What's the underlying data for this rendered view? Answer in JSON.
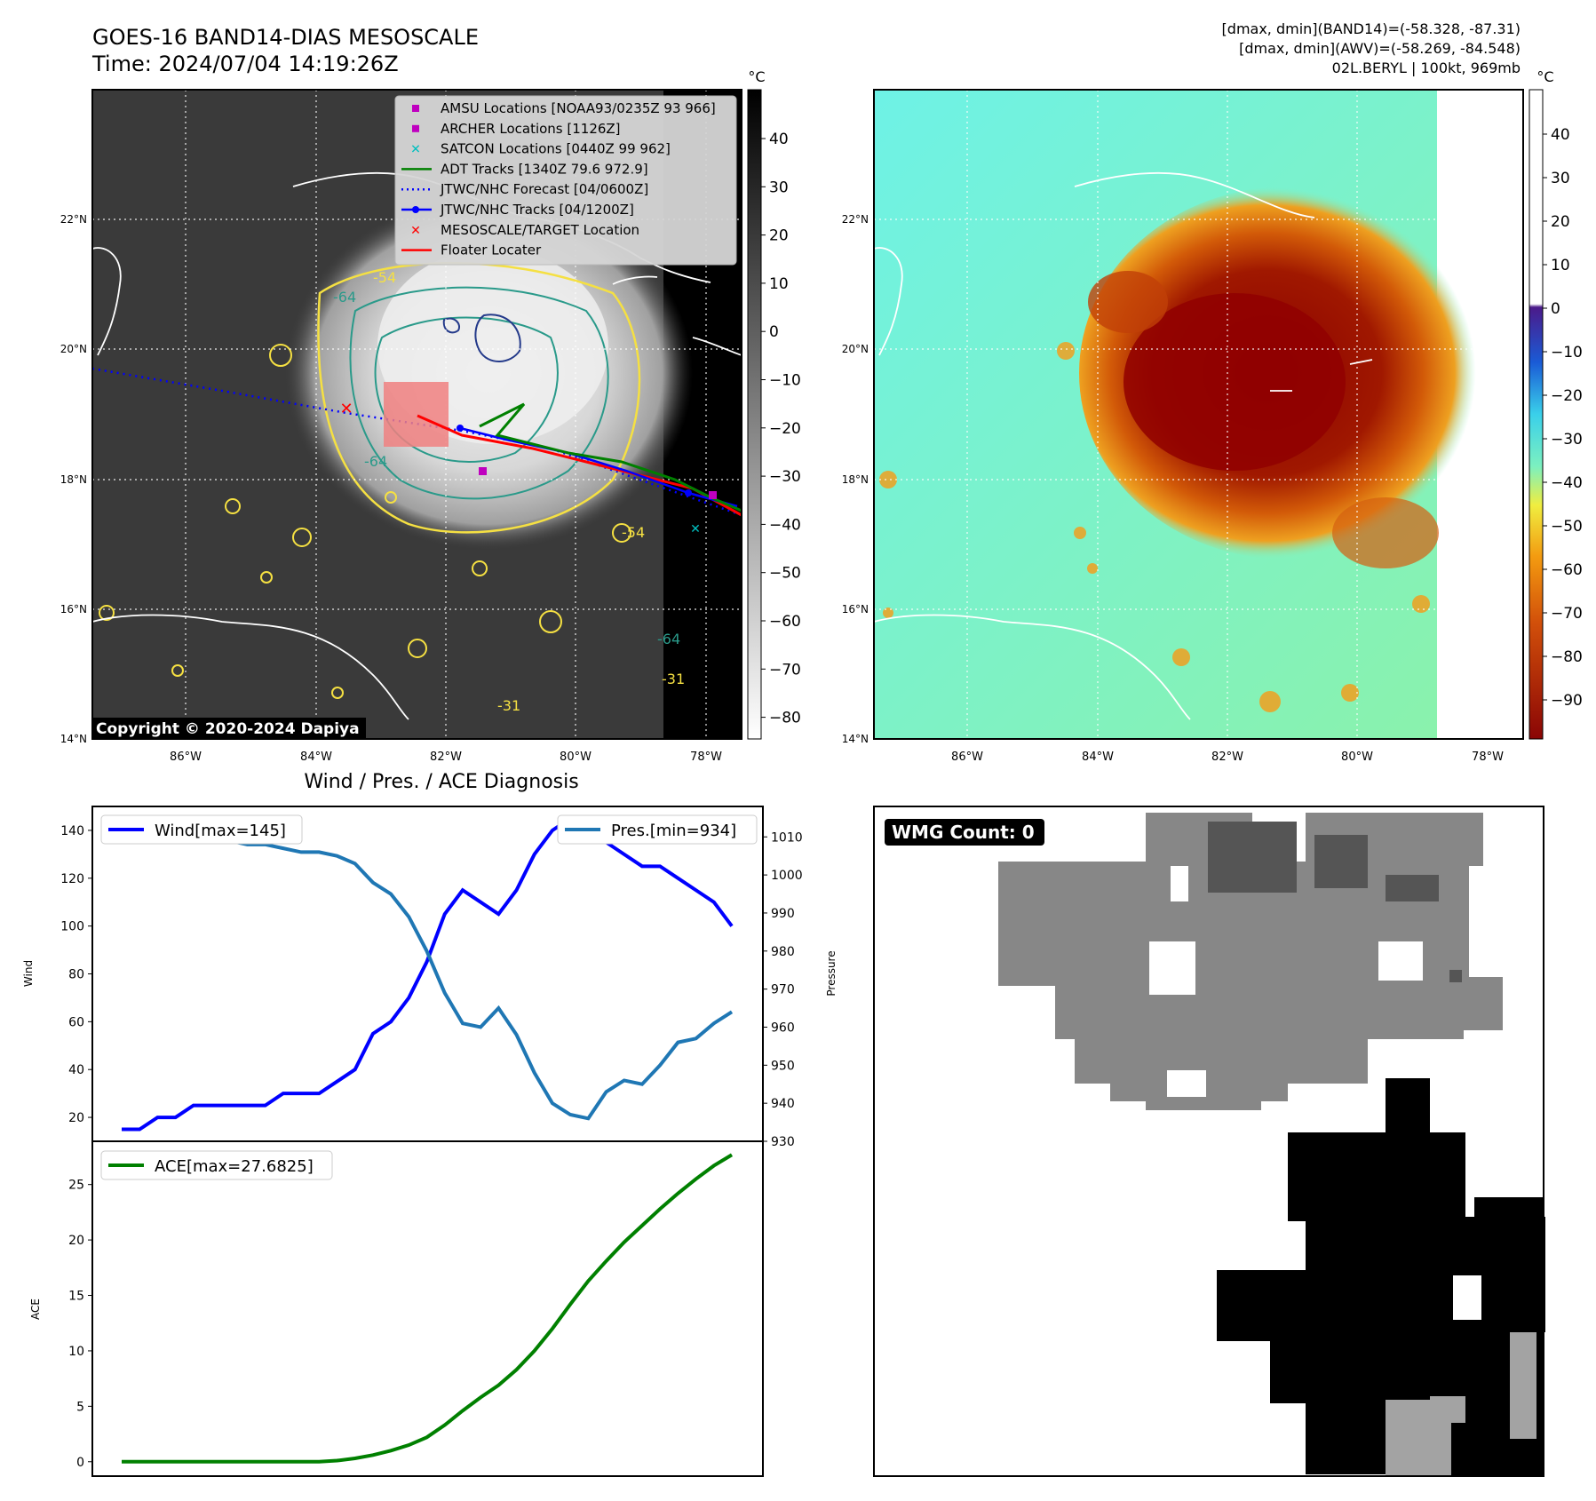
{
  "header": {
    "title_line1": "GOES-16 BAND14-DIAS MESOSCALE",
    "title_line2": "Time: 2024/07/04 14:19:26Z",
    "info_line1": "[dmax, dmin](BAND14)=(-58.328, -87.31)",
    "info_line2": "[dmax, dmin](AWV)=(-58.269, -84.548)",
    "info_line3": "02L.BERYL | 100kt, 969mb"
  },
  "map": {
    "lon_ticks": [
      "86°W",
      "84°W",
      "82°W",
      "80°W",
      "78°W"
    ],
    "lat_ticks": [
      "22°N",
      "20°N",
      "18°N",
      "16°N",
      "14°N"
    ],
    "copyright": "Copyright © 2020-2024 Dapiya",
    "contour_labels": [
      "-54",
      "-64",
      "-64",
      "-54",
      "-64",
      "-31",
      "-31"
    ],
    "legend": [
      {
        "label": "AMSU Locations [NOAA93/0235Z 93 966]",
        "symbol": "square",
        "color": "#bf00bf"
      },
      {
        "label": "ARCHER Locations [1126Z]",
        "symbol": "square",
        "color": "#bf00bf"
      },
      {
        "label": "SATCON Locations [0440Z 99 962]",
        "symbol": "x",
        "color": "#00bfbf"
      },
      {
        "label": "ADT Tracks [1340Z 79.6 972.9]",
        "symbol": "line",
        "color": "#008000"
      },
      {
        "label": "JTWC/NHC Forecast [04/0600Z]",
        "symbol": "dotted",
        "color": "#0000ff"
      },
      {
        "label": "JTWC/NHC Tracks [04/1200Z]",
        "symbol": "line-dot",
        "color": "#0000ff"
      },
      {
        "label": "MESOSCALE/TARGET Location",
        "symbol": "x",
        "color": "#ff0000"
      },
      {
        "label": "Floater Locater",
        "symbol": "line",
        "color": "#ff0000"
      }
    ]
  },
  "colorbars": {
    "unit": "°C",
    "left_ticks": [
      "40",
      "30",
      "20",
      "10",
      "0",
      "−10",
      "−20",
      "−30",
      "−40",
      "−50",
      "−60",
      "−70",
      "−80"
    ],
    "right_ticks": [
      "40",
      "30",
      "20",
      "10",
      "0",
      "−10",
      "−20",
      "−30",
      "−40",
      "−50",
      "−60",
      "−70",
      "−80",
      "−90"
    ]
  },
  "wmg": {
    "badge": "WMG Count: 0"
  },
  "colors": {
    "wind": "#0000ff",
    "pressure": "#1f77b4",
    "ace": "#008000",
    "red": "#ff0000"
  },
  "chart_data": [
    {
      "type": "line",
      "title": "Wind / Pres. / ACE Diagnosis",
      "ylabel": "Wind",
      "ylabel_right": "Pressure",
      "ylim": [
        10,
        150
      ],
      "ylim_right": [
        930,
        1018
      ],
      "yticks": [
        20,
        40,
        60,
        80,
        100,
        120,
        140
      ],
      "yticks_right": [
        930,
        940,
        950,
        960,
        970,
        980,
        990,
        1000,
        1010
      ],
      "series": [
        {
          "name": "Wind[max=145]",
          "axis": "left",
          "values": [
            15,
            15,
            20,
            20,
            25,
            25,
            25,
            25,
            25,
            30,
            30,
            30,
            35,
            40,
            55,
            60,
            70,
            85,
            105,
            115,
            110,
            105,
            115,
            130,
            140,
            145,
            140,
            135,
            130,
            125,
            125,
            120,
            115,
            110,
            100
          ]
        },
        {
          "name": "Pres.[min=934]",
          "axis": "right",
          "values": [
            1014,
            1014,
            1014,
            1012,
            1011,
            1010,
            1009,
            1008,
            1008,
            1007,
            1006,
            1006,
            1005,
            1003,
            998,
            995,
            989,
            980,
            969,
            961,
            960,
            965,
            958,
            948,
            940,
            937,
            936,
            943,
            946,
            945,
            950,
            956,
            957,
            961,
            964
          ]
        }
      ]
    },
    {
      "type": "line",
      "ylabel": "ACE",
      "ylim": [
        -1.3,
        28.9
      ],
      "yticks": [
        0,
        5,
        10,
        15,
        20,
        25
      ],
      "series": [
        {
          "name": "ACE[max=27.6825]",
          "values": [
            0,
            0,
            0,
            0,
            0,
            0,
            0,
            0,
            0,
            0,
            0,
            0,
            0.1,
            0.3,
            0.6,
            1.0,
            1.5,
            2.2,
            3.3,
            4.6,
            5.8,
            6.9,
            8.3,
            10.0,
            12.0,
            14.2,
            16.3,
            18.1,
            19.8,
            21.3,
            22.8,
            24.2,
            25.5,
            26.7,
            27.68
          ]
        }
      ]
    }
  ]
}
